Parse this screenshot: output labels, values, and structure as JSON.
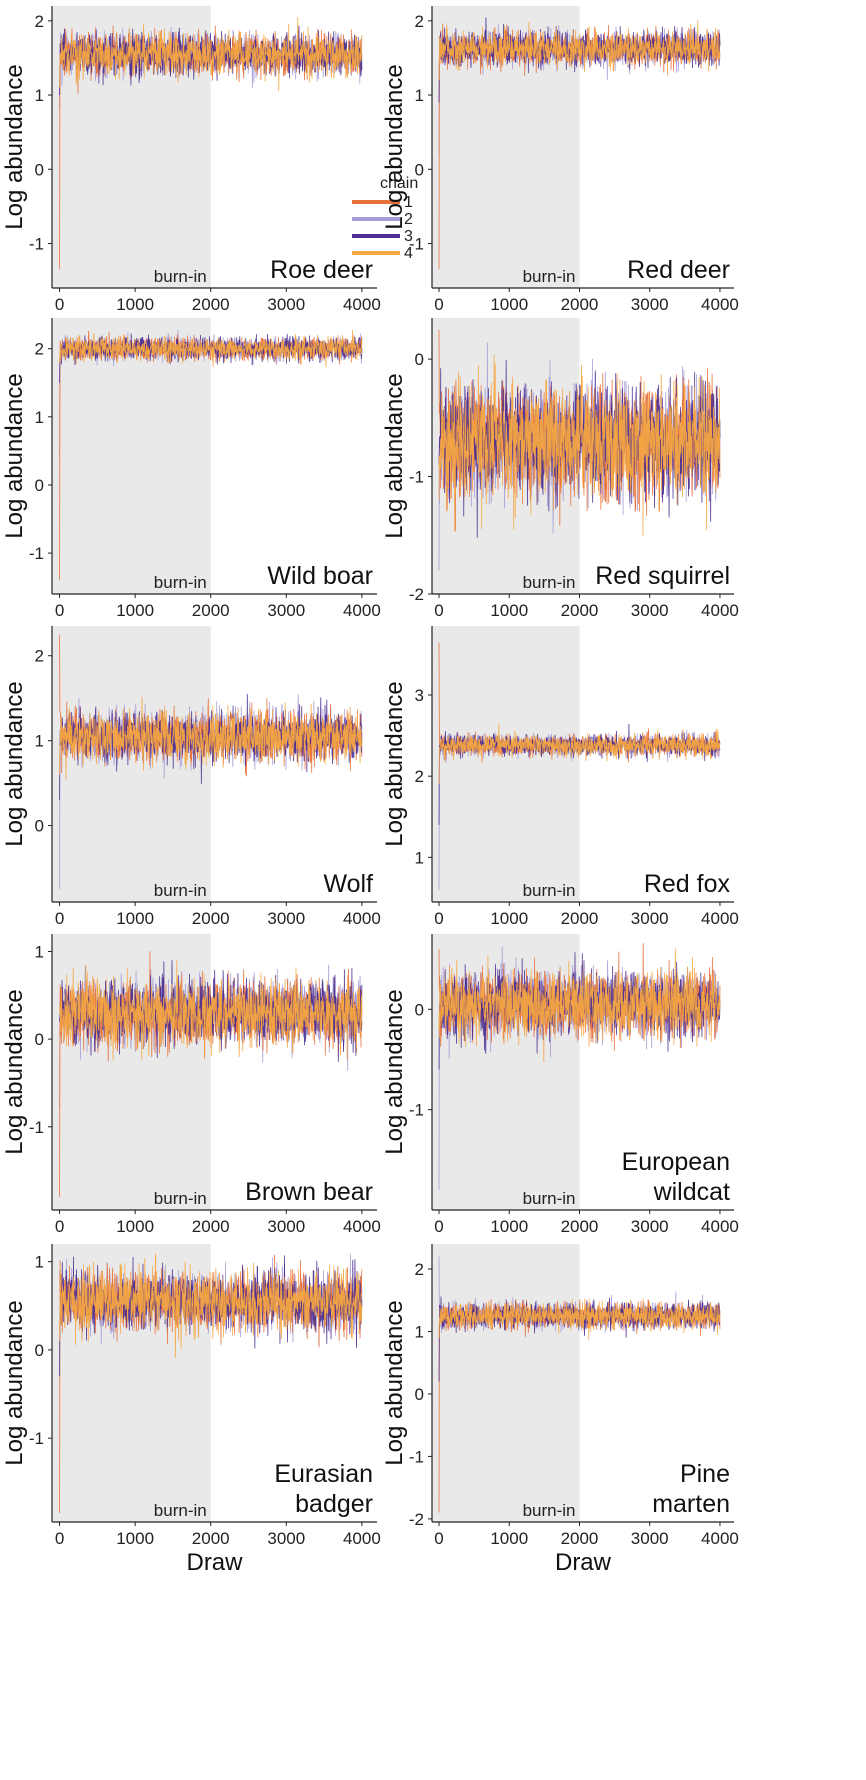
{
  "colors": {
    "chain1": "#e8713a",
    "chain2": "#a59bd6",
    "chain3": "#4d2f91",
    "chain4": "#f5a742",
    "burn_in_shade": "#e9e9e9"
  },
  "legend": {
    "title": "chain",
    "entries": [
      "1",
      "2",
      "3",
      "4"
    ]
  },
  "burn_in_label": "burn-in",
  "chart_data": [
    {
      "type": "line",
      "species": [
        "Roe deer"
      ],
      "ylabel": "Log abundance",
      "xlabel": "",
      "x_ticks": [
        "0",
        "1000",
        "2000",
        "3000",
        "4000"
      ],
      "xlim": [
        -100,
        4200
      ],
      "burn_in_end": 2000,
      "y_ticks": [
        "-1",
        "0",
        "1",
        "2"
      ],
      "y_tick_values": [
        -1,
        0,
        1,
        2
      ],
      "ylim": [
        -1.6,
        2.2
      ],
      "trace": {
        "init": [
          -1.35,
          0.8,
          1.0,
          1.1
        ],
        "center": 1.55,
        "spread": 0.22
      },
      "legend": true
    },
    {
      "type": "line",
      "species": [
        "Red deer"
      ],
      "ylabel": "Log abundance",
      "xlabel": "",
      "x_ticks": [
        "0",
        "1000",
        "2000",
        "3000",
        "4000"
      ],
      "xlim": [
        -100,
        4200
      ],
      "burn_in_end": 2000,
      "y_ticks": [
        "-1",
        "0",
        "1",
        "2"
      ],
      "y_tick_values": [
        -1,
        0,
        1,
        2
      ],
      "ylim": [
        -1.6,
        2.2
      ],
      "trace": {
        "init": [
          -1.35,
          0.2,
          0.9,
          1.2
        ],
        "center": 1.62,
        "spread": 0.18
      },
      "legend": false
    },
    {
      "type": "line",
      "species": [
        "Wild boar"
      ],
      "ylabel": "Log abundance",
      "xlabel": "",
      "x_ticks": [
        "0",
        "1000",
        "2000",
        "3000",
        "4000"
      ],
      "xlim": [
        -100,
        4200
      ],
      "burn_in_end": 2000,
      "y_ticks": [
        "-1",
        "0",
        "1",
        "2"
      ],
      "y_tick_values": [
        -1,
        0,
        1,
        2
      ],
      "ylim": [
        -1.6,
        2.45
      ],
      "trace": {
        "init": [
          -1.4,
          0.4,
          1.5,
          1.8
        ],
        "center": 2.0,
        "spread": 0.13
      },
      "legend": false
    },
    {
      "type": "line",
      "species": [
        "Red squirrel"
      ],
      "ylabel": "Log abundance",
      "xlabel": "",
      "x_ticks": [
        "0",
        "1000",
        "2000",
        "3000",
        "4000"
      ],
      "xlim": [
        -100,
        4200
      ],
      "burn_in_end": 2000,
      "y_ticks": [
        "-2",
        "-1",
        "0"
      ],
      "y_tick_values": [
        -2,
        -1,
        0
      ],
      "ylim": [
        -2.0,
        0.35
      ],
      "trace": {
        "init": [
          0.25,
          -1.8,
          -0.9,
          -1.2
        ],
        "center": -0.7,
        "spread": 0.38
      },
      "legend": false
    },
    {
      "type": "line",
      "species": [
        "Wolf"
      ],
      "ylabel": "Log abundance",
      "xlabel": "",
      "x_ticks": [
        "0",
        "1000",
        "2000",
        "3000",
        "4000"
      ],
      "xlim": [
        -100,
        4200
      ],
      "burn_in_end": 2000,
      "y_ticks": [
        "0",
        "1",
        "2"
      ],
      "y_tick_values": [
        0,
        1,
        2
      ],
      "ylim": [
        -0.9,
        2.35
      ],
      "trace": {
        "init": [
          2.25,
          -0.75,
          0.3,
          0.6
        ],
        "center": 1.05,
        "spread": 0.24
      },
      "legend": false
    },
    {
      "type": "line",
      "species": [
        "Red fox"
      ],
      "ylabel": "Log abundance",
      "xlabel": "",
      "x_ticks": [
        "0",
        "1000",
        "2000",
        "3000",
        "4000"
      ],
      "xlim": [
        -100,
        4200
      ],
      "burn_in_end": 2000,
      "y_ticks": [
        "1",
        "2",
        "3"
      ],
      "y_tick_values": [
        1,
        2,
        3
      ],
      "ylim": [
        0.45,
        3.85
      ],
      "trace": {
        "init": [
          3.65,
          0.6,
          1.4,
          1.9
        ],
        "center": 2.38,
        "spread": 0.1
      },
      "legend": false
    },
    {
      "type": "line",
      "species": [
        "Brown bear"
      ],
      "ylabel": "Log abundance",
      "xlabel": "",
      "x_ticks": [
        "0",
        "1000",
        "2000",
        "3000",
        "4000"
      ],
      "xlim": [
        -100,
        4200
      ],
      "burn_in_end": 2000,
      "y_ticks": [
        "-1",
        "0",
        "1"
      ],
      "y_tick_values": [
        -1,
        0,
        1
      ],
      "ylim": [
        -1.95,
        1.2
      ],
      "trace": {
        "init": [
          -1.8,
          -0.8,
          0.2,
          0.4
        ],
        "center": 0.3,
        "spread": 0.3
      },
      "legend": false
    },
    {
      "type": "line",
      "species": [
        "European",
        "wildcat"
      ],
      "ylabel": "Log abundance",
      "xlabel": "",
      "x_ticks": [
        "0",
        "1000",
        "2000",
        "3000",
        "4000"
      ],
      "xlim": [
        -100,
        4200
      ],
      "burn_in_end": 2000,
      "y_ticks": [
        "-1",
        "0"
      ],
      "y_tick_values": [
        -1,
        0
      ],
      "ylim": [
        -2.0,
        0.75
      ],
      "trace": {
        "init": [
          0.6,
          -1.8,
          -0.6,
          -0.2
        ],
        "center": 0.05,
        "spread": 0.26
      },
      "legend": false
    },
    {
      "type": "line",
      "species": [
        "Eurasian",
        "badger"
      ],
      "ylabel": "Log abundance",
      "xlabel": "Draw",
      "x_ticks": [
        "0",
        "1000",
        "2000",
        "3000",
        "4000"
      ],
      "xlim": [
        -100,
        4200
      ],
      "burn_in_end": 2000,
      "y_ticks": [
        "-1",
        "0",
        "1"
      ],
      "y_tick_values": [
        -1,
        0,
        1
      ],
      "ylim": [
        -1.95,
        1.2
      ],
      "trace": {
        "init": [
          -1.85,
          0.9,
          -0.3,
          0.1
        ],
        "center": 0.55,
        "spread": 0.27
      },
      "legend": false
    },
    {
      "type": "line",
      "species": [
        "Pine",
        "marten"
      ],
      "ylabel": "Log abundance",
      "xlabel": "Draw",
      "x_ticks": [
        "0",
        "1000",
        "2000",
        "3000",
        "4000"
      ],
      "xlim": [
        -100,
        4200
      ],
      "burn_in_end": 2000,
      "y_ticks": [
        "-2",
        "-1",
        "0",
        "1",
        "2"
      ],
      "y_tick_values": [
        -2,
        -1,
        0,
        1,
        2
      ],
      "ylim": [
        -2.05,
        2.4
      ],
      "trace": {
        "init": [
          -1.9,
          2.2,
          0.2,
          0.9
        ],
        "center": 1.25,
        "spread": 0.16
      },
      "legend": false
    }
  ]
}
